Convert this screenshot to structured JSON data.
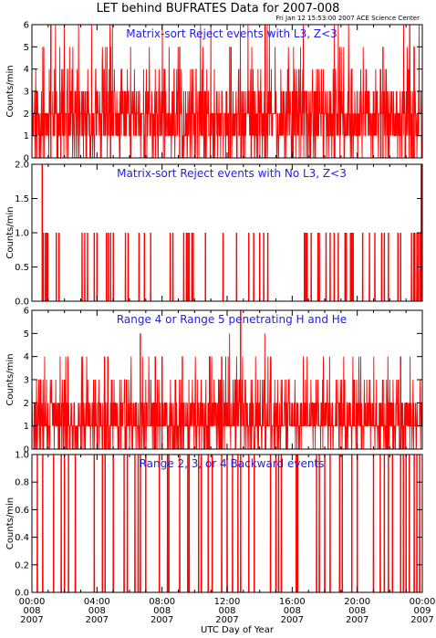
{
  "title": "LET behind BUFRATES Data for 2007-008",
  "subtitle": "Fri Jan 12 15:53:00 2007 ACE Science Center",
  "colors": {
    "data": "#ff0000",
    "panel_title": "#1d1df0",
    "axes": "#000000"
  },
  "chart_data": [
    {
      "type": "bar",
      "title": "Matrix-sort Reject events with L3, Z<3",
      "ylabel": "Counts/min",
      "ylim": [
        0,
        6
      ],
      "yticks": [
        "0",
        "1",
        "2",
        "3",
        "4",
        "5",
        "6"
      ],
      "xlim_minutes": [
        0,
        1440
      ],
      "seed": 11,
      "profile": {
        "p_zero": 0.06,
        "weights": [
          0.05,
          0.3,
          0.38,
          0.18,
          0.06,
          0.02,
          0.01
        ]
      },
      "x": [
        70,
        290,
        545,
        730,
        860,
        1295,
        1410
      ],
      "values": [
        6,
        5,
        5,
        5,
        6,
        5,
        5
      ]
    },
    {
      "type": "bar",
      "title": "Matrix-sort Reject events with No L3, Z<3",
      "ylabel": "Counts/min",
      "ylim": [
        0,
        2.0
      ],
      "yticks": [
        "0.0",
        "0.5",
        "1.0",
        "1.5",
        "2.0"
      ],
      "xlim_minutes": [
        0,
        1440
      ],
      "x": [
        38,
        42,
        50,
        55,
        58,
        90,
        100,
        185,
        195,
        205,
        230,
        240,
        275,
        282,
        290,
        300,
        345,
        355,
        395,
        415,
        438,
        510,
        520,
        560,
        570,
        575,
        580,
        590,
        595,
        640,
        705,
        755,
        800,
        818,
        840,
        855,
        870,
        1005,
        1010,
        1015,
        1030,
        1055,
        1060,
        1085,
        1100,
        1115,
        1130,
        1155,
        1160,
        1175,
        1180,
        1185,
        1220,
        1245,
        1265,
        1290,
        1300,
        1315,
        1350,
        1360,
        1400,
        1408,
        1412,
        1420,
        1425,
        1432,
        1436
      ],
      "values": [
        2,
        1,
        1,
        1,
        1,
        1,
        1,
        1,
        1,
        1,
        1,
        1,
        1,
        1,
        1,
        1,
        1,
        1,
        1,
        1,
        1,
        1,
        1,
        1,
        1,
        1,
        1,
        1,
        1,
        1,
        1,
        1,
        1,
        1,
        1,
        1,
        1,
        1,
        1,
        1,
        1,
        1,
        1,
        1,
        1,
        1,
        1,
        1,
        1,
        1,
        1,
        1,
        1,
        1,
        1,
        1,
        1,
        1,
        1,
        1,
        1,
        1,
        1,
        1,
        1,
        1,
        2
      ]
    },
    {
      "type": "bar",
      "title": "Range 4 or Range 5 penetrating H and He",
      "ylabel": "Counts/min",
      "ylim": [
        0,
        6
      ],
      "yticks": [
        "0",
        "1",
        "2",
        "3",
        "4",
        "5",
        "6"
      ],
      "xlim_minutes": [
        0,
        1440
      ],
      "seed": 29,
      "profile": {
        "p_zero": 0.08,
        "weights": [
          0.1,
          0.5,
          0.28,
          0.09,
          0.025,
          0.005,
          0.0
        ]
      },
      "x": [
        268,
        280,
        400,
        455,
        480,
        555,
        655,
        700,
        770,
        1360
      ],
      "values": [
        4,
        4,
        5,
        4,
        4,
        4,
        4,
        4,
        6,
        4
      ]
    },
    {
      "type": "bar",
      "title": "Range 2, 3, or 4 Backward events",
      "ylabel": "Counts/min",
      "ylim": [
        0,
        1.0
      ],
      "yticks": [
        "0.0",
        "0.2",
        "0.4",
        "0.6",
        "0.8",
        "1.0"
      ],
      "xlim_minutes": [
        0,
        1440
      ],
      "x": [
        20,
        40,
        80,
        108,
        120,
        135,
        160,
        230,
        260,
        270,
        300,
        340,
        352,
        380,
        392,
        400,
        420,
        470,
        500,
        505,
        545,
        575,
        580,
        615,
        625,
        650,
        665,
        700,
        720,
        740,
        760,
        770,
        800,
        820,
        880,
        900,
        910,
        920,
        975,
        980,
        1050,
        1060,
        1080,
        1100,
        1135,
        1145,
        1180,
        1200,
        1260,
        1285,
        1300,
        1315,
        1330,
        1360,
        1370,
        1380,
        1392,
        1410,
        1420,
        1430
      ],
      "values": [
        1,
        1,
        1,
        1,
        1,
        1,
        1,
        1,
        1,
        1,
        1,
        1,
        1,
        1,
        1,
        1,
        1,
        1,
        1,
        1,
        1,
        1,
        1,
        1,
        1,
        1,
        1,
        1,
        1,
        1,
        1,
        1,
        1,
        1,
        1,
        1,
        1,
        1,
        1,
        1,
        1,
        1,
        1,
        1,
        1,
        1,
        1,
        1,
        1,
        1,
        1,
        1,
        1,
        1,
        1,
        1,
        1,
        1,
        1,
        1
      ]
    }
  ],
  "x_axis": {
    "label": "UTC Day of Year",
    "ticks": [
      {
        "minutes": 0,
        "time": "00:00",
        "doy": "008",
        "year": "2007"
      },
      {
        "minutes": 240,
        "time": "04:00",
        "doy": "008",
        "year": "2007"
      },
      {
        "minutes": 480,
        "time": "08:00",
        "doy": "008",
        "year": "2007"
      },
      {
        "minutes": 720,
        "time": "12:00",
        "doy": "008",
        "year": "2007"
      },
      {
        "minutes": 960,
        "time": "16:00",
        "doy": "008",
        "year": "2007"
      },
      {
        "minutes": 1200,
        "time": "20:00",
        "doy": "008",
        "year": "2007"
      },
      {
        "minutes": 1440,
        "time": "00:00",
        "doy": "009",
        "year": "2007"
      }
    ]
  }
}
